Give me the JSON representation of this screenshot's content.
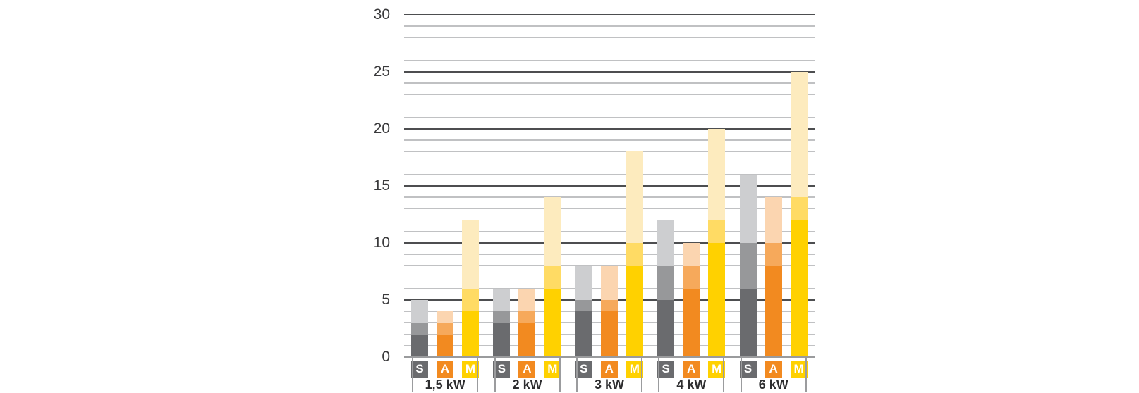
{
  "chart_data": {
    "type": "bar",
    "stacked": true,
    "title": "",
    "categories": [
      "1,5 kW",
      "2 kW",
      "3 kW",
      "4 kW",
      "6 kW"
    ],
    "bar_keys": [
      "S",
      "A",
      "M"
    ],
    "series": [
      {
        "bar": "S",
        "shade": "dark",
        "color": "#6A6B6E",
        "values": [
          2,
          3,
          4,
          5,
          6
        ]
      },
      {
        "bar": "S",
        "shade": "medium",
        "color": "#97989A",
        "values": [
          1,
          1,
          1,
          3,
          4
        ]
      },
      {
        "bar": "S",
        "shade": "light",
        "color": "#CDCED0",
        "values": [
          2,
          2,
          3,
          4,
          6
        ]
      },
      {
        "bar": "A",
        "shade": "dark",
        "color": "#F28A20",
        "values": [
          2,
          3,
          4,
          6,
          8
        ]
      },
      {
        "bar": "A",
        "shade": "medium",
        "color": "#F6A95B",
        "values": [
          1,
          1,
          1,
          2,
          2
        ]
      },
      {
        "bar": "A",
        "shade": "light",
        "color": "#FBD5B0",
        "values": [
          1,
          2,
          3,
          2,
          4
        ]
      },
      {
        "bar": "M",
        "shade": "dark",
        "color": "#FFD100",
        "values": [
          4,
          6,
          8,
          10,
          12
        ]
      },
      {
        "bar": "M",
        "shade": "medium",
        "color": "#FFDB64",
        "values": [
          2,
          2,
          2,
          2,
          2
        ]
      },
      {
        "bar": "M",
        "shade": "light",
        "color": "#FDEBBE",
        "values": [
          6,
          6,
          8,
          8,
          11
        ]
      }
    ],
    "totals": {
      "S": [
        5,
        6,
        8,
        12,
        16
      ],
      "A": [
        4,
        6,
        8,
        10,
        14
      ],
      "M": [
        12,
        14,
        18,
        20,
        25
      ]
    },
    "badges": [
      {
        "label": "S",
        "bg": "#6A6B6E",
        "text_color": "#FFFFFF"
      },
      {
        "label": "A",
        "bg": "#F28A20",
        "text_color": "#FFFFFF"
      },
      {
        "label": "M",
        "bg": "#FFD100",
        "text_color": "#FFFFFF"
      }
    ],
    "xlabel": "",
    "ylabel": "",
    "ylim": [
      0,
      30
    ],
    "y_major_ticks": [
      0,
      5,
      10,
      15,
      20,
      25,
      30
    ],
    "y_minor_step": 1,
    "grid": "on",
    "legend": "none",
    "colors": {
      "major_gridline": "#4D4E50",
      "minor_gridline": "#C0C1C3",
      "zero_line": "#9A9B9D",
      "tick_label": "#3A3A3C",
      "group_label": "#2D2D2F",
      "bracket_tick": "#9B9C9E",
      "background": "#FFFFFF"
    }
  }
}
